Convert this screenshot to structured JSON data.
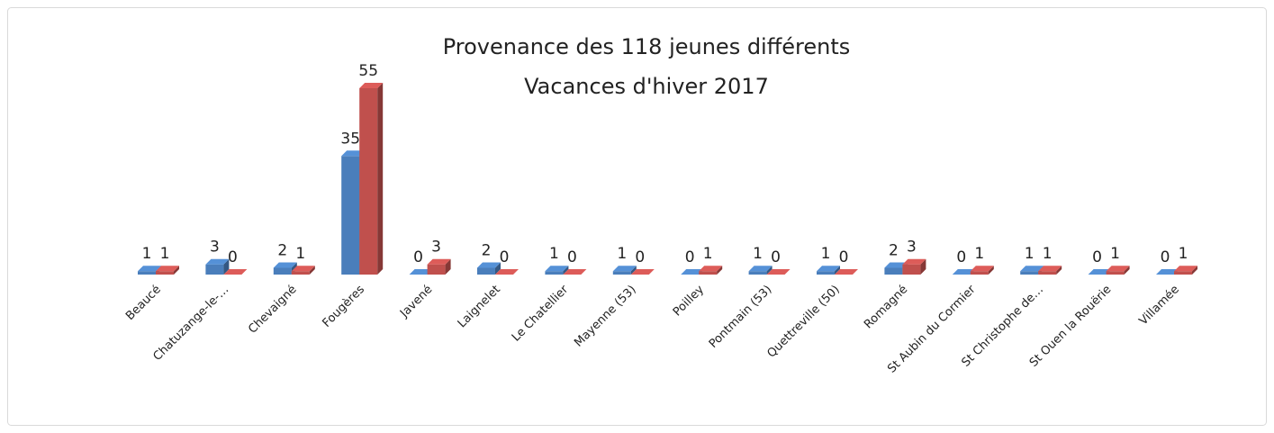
{
  "chart_data": {
    "type": "bar",
    "title": "Provenance des 118 jeunes différents",
    "subtitle": "Vacances d'hiver 2017",
    "categories": [
      "Beaucé",
      "Chatuzange-le-…",
      "Chevaigné",
      "Fougères",
      "Javené",
      "Laignelet",
      "Le Chatellier",
      "Mayenne (53)",
      "Poilley",
      "Pontmain (53)",
      "Quettreville (50)",
      "Romagné",
      "St Aubin du Cormier",
      "St Christophe de…",
      "St Ouen la Rouërie",
      "Villamée"
    ],
    "series": [
      {
        "color": "#4a7ebb",
        "values": [
          1,
          3,
          2,
          35,
          0,
          2,
          1,
          1,
          0,
          1,
          1,
          2,
          0,
          1,
          0,
          0
        ]
      },
      {
        "color": "#c0504d",
        "values": [
          1,
          0,
          1,
          55,
          3,
          0,
          0,
          0,
          1,
          0,
          0,
          3,
          1,
          1,
          1,
          1
        ]
      }
    ]
  }
}
